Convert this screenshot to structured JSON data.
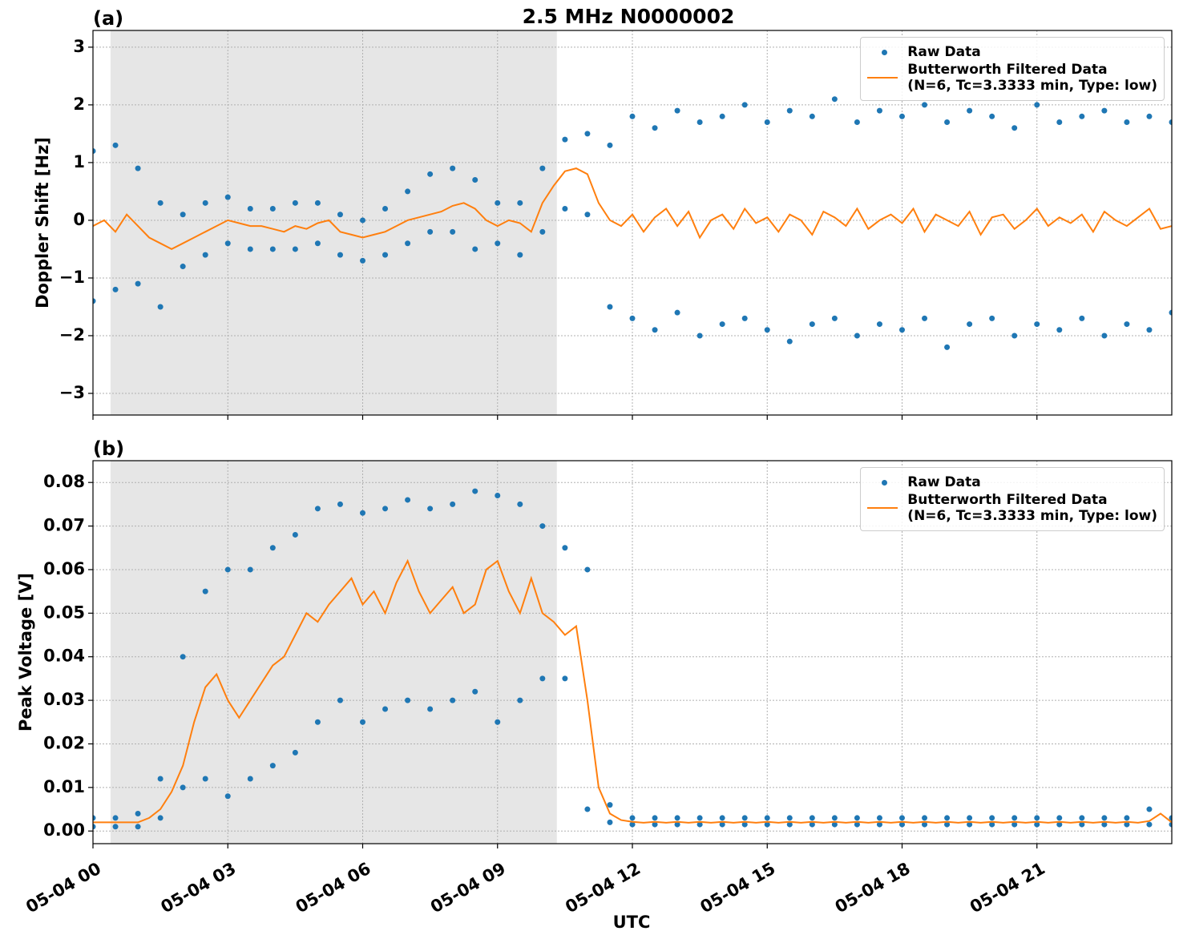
{
  "title": "2.5 MHz N0000002",
  "x_label": "UTC",
  "chart_data": [
    {
      "type": "scatter-line",
      "panel_label": "(a)",
      "y_label": "Doppler Shift [Hz]",
      "xlim": [
        0,
        24
      ],
      "xticks": [
        0,
        3,
        6,
        9,
        12,
        15,
        18,
        21
      ],
      "ylim": [
        -3.375,
        3.29
      ],
      "yticks": [
        {
          "value": -3,
          "label": "−3"
        },
        {
          "value": -2,
          "label": "−2"
        },
        {
          "value": -1,
          "label": "−1"
        },
        0,
        1,
        2,
        3
      ],
      "grid": true,
      "shaded_span": [
        0.39,
        10.32
      ],
      "legend": "upper right",
      "series": [
        {
          "name": "Raw Data",
          "color": "#1f77b4",
          "kind": "scatter",
          "x": [
            0,
            0,
            0.5,
            0.5,
            1,
            1,
            1.5,
            1.5,
            2,
            2,
            2.5,
            2.5,
            3,
            3,
            3.5,
            3.5,
            4,
            4,
            4.5,
            4.5,
            5,
            5,
            5.5,
            5.5,
            6,
            6,
            6.5,
            6.5,
            7,
            7,
            7.5,
            7.5,
            8,
            8,
            8.5,
            8.5,
            9,
            9,
            9.5,
            9.5,
            10,
            10,
            10.5,
            10.5,
            11,
            11,
            11.5,
            11.5,
            12,
            12,
            12.5,
            12.5,
            13,
            13,
            13.5,
            13.5,
            14,
            14,
            14.5,
            14.5,
            15,
            15,
            15.5,
            15.5,
            16,
            16,
            16.5,
            16.5,
            17,
            17,
            17.5,
            17.5,
            18,
            18,
            18.5,
            18.5,
            19,
            19,
            19.5,
            19.5,
            20,
            20,
            20.5,
            20.5,
            21,
            21,
            21.5,
            21.5,
            22,
            22,
            22.5,
            22.5,
            23,
            23,
            23.5,
            23.5,
            24,
            24
          ],
          "values": [
            1.2,
            -1.4,
            1.3,
            -1.2,
            0.9,
            -1.1,
            0.3,
            -1.5,
            0.1,
            -0.8,
            0.3,
            -0.6,
            0.4,
            -0.4,
            0.2,
            -0.5,
            0.2,
            -0.5,
            0.3,
            -0.5,
            0.3,
            -0.4,
            0.1,
            -0.6,
            0.0,
            -0.7,
            0.2,
            -0.6,
            0.5,
            -0.4,
            0.8,
            -0.2,
            0.9,
            -0.2,
            0.7,
            -0.5,
            0.3,
            -0.4,
            0.3,
            -0.6,
            0.9,
            -0.2,
            1.4,
            0.2,
            1.5,
            0.1,
            1.3,
            -1.5,
            1.8,
            -1.7,
            1.6,
            -1.9,
            1.9,
            -1.6,
            1.7,
            -2.0,
            1.8,
            -1.8,
            2.0,
            -1.7,
            1.7,
            -1.9,
            1.9,
            -2.1,
            1.8,
            -1.8,
            2.1,
            -1.7,
            1.7,
            -2.0,
            1.9,
            -1.8,
            1.8,
            -1.9,
            2.0,
            -1.7,
            1.7,
            -2.2,
            1.9,
            -1.8,
            1.8,
            -1.7,
            1.6,
            -2.0,
            2.0,
            -1.8,
            1.7,
            -1.9,
            1.8,
            -1.7,
            1.9,
            -2.0,
            1.7,
            -1.8,
            1.8,
            -1.9,
            1.7,
            -1.6
          ]
        },
        {
          "name": "Butterworth Filtered Data\n(N=6, Tc=3.3333 min, Type: low)",
          "color": "#ff7f0e",
          "kind": "line",
          "x": [
            0,
            0.25,
            0.5,
            0.75,
            1,
            1.25,
            1.5,
            1.75,
            2,
            2.25,
            2.5,
            2.75,
            3,
            3.25,
            3.5,
            3.75,
            4,
            4.25,
            4.5,
            4.75,
            5,
            5.25,
            5.5,
            5.75,
            6,
            6.25,
            6.5,
            6.75,
            7,
            7.25,
            7.5,
            7.75,
            8,
            8.25,
            8.5,
            8.75,
            9,
            9.25,
            9.5,
            9.75,
            10,
            10.25,
            10.5,
            10.75,
            11,
            11.25,
            11.5,
            11.75,
            12,
            12.25,
            12.5,
            12.75,
            13,
            13.25,
            13.5,
            13.75,
            14,
            14.25,
            14.5,
            14.75,
            15,
            15.25,
            15.5,
            15.75,
            16,
            16.25,
            16.5,
            16.75,
            17,
            17.25,
            17.5,
            17.75,
            18,
            18.25,
            18.5,
            18.75,
            19,
            19.25,
            19.5,
            19.75,
            20,
            20.25,
            20.5,
            20.75,
            21,
            21.25,
            21.5,
            21.75,
            22,
            22.25,
            22.5,
            22.75,
            23,
            23.25,
            23.5,
            23.75,
            24
          ],
          "values": [
            -0.1,
            0.0,
            -0.2,
            0.1,
            -0.1,
            -0.3,
            -0.4,
            -0.5,
            -0.4,
            -0.3,
            -0.2,
            -0.1,
            0.0,
            -0.05,
            -0.1,
            -0.1,
            -0.15,
            -0.2,
            -0.1,
            -0.15,
            -0.05,
            0.0,
            -0.2,
            -0.25,
            -0.3,
            -0.25,
            -0.2,
            -0.1,
            0.0,
            0.05,
            0.1,
            0.15,
            0.25,
            0.3,
            0.2,
            0.0,
            -0.1,
            0.0,
            -0.05,
            -0.2,
            0.3,
            0.6,
            0.85,
            0.9,
            0.8,
            0.3,
            0.0,
            -0.1,
            0.1,
            -0.2,
            0.05,
            0.2,
            -0.1,
            0.15,
            -0.3,
            0.0,
            0.1,
            -0.15,
            0.2,
            -0.05,
            0.05,
            -0.2,
            0.1,
            0.0,
            -0.25,
            0.15,
            0.05,
            -0.1,
            0.2,
            -0.15,
            0.0,
            0.1,
            -0.05,
            0.2,
            -0.2,
            0.1,
            0.0,
            -0.1,
            0.15,
            -0.25,
            0.05,
            0.1,
            -0.15,
            0.0,
            0.2,
            -0.1,
            0.05,
            -0.05,
            0.1,
            -0.2,
            0.15,
            0.0,
            -0.1,
            0.05,
            0.2,
            -0.15,
            -0.1
          ]
        }
      ]
    },
    {
      "type": "scatter-line",
      "panel_label": "(b)",
      "y_label": "Peak Voltage [V]",
      "xlim": [
        0,
        24
      ],
      "xticks": [
        {
          "value": 0,
          "label": "05-04 00"
        },
        {
          "value": 3,
          "label": "05-04 03"
        },
        {
          "value": 6,
          "label": "05-04 06"
        },
        {
          "value": 9,
          "label": "05-04 09"
        },
        {
          "value": 12,
          "label": "05-04 12"
        },
        {
          "value": 15,
          "label": "05-04 15"
        },
        {
          "value": 18,
          "label": "05-04 18"
        },
        {
          "value": 21,
          "label": "05-04 21"
        }
      ],
      "ylim": [
        -0.0029,
        0.085
      ],
      "yticks": [
        {
          "value": 0,
          "label": "0.00"
        },
        {
          "value": 0.01,
          "label": "0.01"
        },
        {
          "value": 0.02,
          "label": "0.02"
        },
        {
          "value": 0.03,
          "label": "0.03"
        },
        {
          "value": 0.04,
          "label": "0.04"
        },
        {
          "value": 0.05,
          "label": "0.05"
        },
        {
          "value": 0.06,
          "label": "0.06"
        },
        {
          "value": 0.07,
          "label": "0.07"
        },
        {
          "value": 0.08,
          "label": "0.08"
        }
      ],
      "grid": true,
      "shaded_span": [
        0.39,
        10.32
      ],
      "legend": "upper right",
      "series": [
        {
          "name": "Raw Data",
          "color": "#1f77b4",
          "kind": "scatter",
          "x": [
            0,
            0,
            0.5,
            0.5,
            1,
            1,
            1.5,
            1.5,
            2,
            2,
            2.5,
            2.5,
            3,
            3,
            3.5,
            3.5,
            4,
            4,
            4.5,
            4.5,
            5,
            5,
            5.5,
            5.5,
            6,
            6,
            6.5,
            6.5,
            7,
            7,
            7.5,
            7.5,
            8,
            8,
            8.5,
            8.5,
            9,
            9,
            9.5,
            9.5,
            10,
            10,
            10.5,
            10.5,
            11,
            11,
            11.5,
            11.5,
            12,
            12,
            12.5,
            12.5,
            13,
            13,
            13.5,
            13.5,
            14,
            14,
            14.5,
            14.5,
            15,
            15,
            15.5,
            15.5,
            16,
            16,
            16.5,
            16.5,
            17,
            17,
            17.5,
            17.5,
            18,
            18,
            18.5,
            18.5,
            19,
            19,
            19.5,
            19.5,
            20,
            20,
            20.5,
            20.5,
            21,
            21,
            21.5,
            21.5,
            22,
            22,
            22.5,
            22.5,
            23,
            23,
            23.5,
            23.5,
            24,
            24
          ],
          "values": [
            0.003,
            0.001,
            0.003,
            0.001,
            0.004,
            0.001,
            0.012,
            0.003,
            0.04,
            0.01,
            0.055,
            0.012,
            0.06,
            0.008,
            0.06,
            0.012,
            0.065,
            0.015,
            0.068,
            0.018,
            0.074,
            0.025,
            0.075,
            0.03,
            0.073,
            0.025,
            0.074,
            0.028,
            0.076,
            0.03,
            0.074,
            0.028,
            0.075,
            0.03,
            0.078,
            0.032,
            0.077,
            0.025,
            0.075,
            0.03,
            0.07,
            0.035,
            0.065,
            0.035,
            0.06,
            0.005,
            0.006,
            0.002,
            0.003,
            0.0015,
            0.003,
            0.0015,
            0.003,
            0.0015,
            0.003,
            0.0015,
            0.003,
            0.0015,
            0.003,
            0.0015,
            0.003,
            0.0015,
            0.003,
            0.0015,
            0.003,
            0.0015,
            0.003,
            0.0015,
            0.003,
            0.0015,
            0.003,
            0.0015,
            0.003,
            0.0015,
            0.003,
            0.0015,
            0.003,
            0.0015,
            0.003,
            0.0015,
            0.003,
            0.0015,
            0.003,
            0.0015,
            0.003,
            0.0015,
            0.003,
            0.0015,
            0.003,
            0.0015,
            0.003,
            0.0015,
            0.003,
            0.0015,
            0.005,
            0.0015,
            0.003,
            0.0015
          ]
        },
        {
          "name": "Butterworth Filtered Data\n(N=6, Tc=3.3333 min, Type: low)",
          "color": "#ff7f0e",
          "kind": "line",
          "x": [
            0,
            0.25,
            0.5,
            0.75,
            1,
            1.25,
            1.5,
            1.75,
            2,
            2.25,
            2.5,
            2.75,
            3,
            3.25,
            3.5,
            3.75,
            4,
            4.25,
            4.5,
            4.75,
            5,
            5.25,
            5.5,
            5.75,
            6,
            6.25,
            6.5,
            6.75,
            7,
            7.25,
            7.5,
            7.75,
            8,
            8.25,
            8.5,
            8.75,
            9,
            9.25,
            9.5,
            9.75,
            10,
            10.25,
            10.5,
            10.75,
            11,
            11.25,
            11.5,
            11.75,
            12,
            12.25,
            12.5,
            12.75,
            13,
            13.25,
            13.5,
            13.75,
            14,
            14.25,
            14.5,
            14.75,
            15,
            15.25,
            15.5,
            15.75,
            16,
            16.25,
            16.5,
            16.75,
            17,
            17.25,
            17.5,
            17.75,
            18,
            18.25,
            18.5,
            18.75,
            19,
            19.25,
            19.5,
            19.75,
            20,
            20.25,
            20.5,
            20.75,
            21,
            21.25,
            21.5,
            21.75,
            22,
            22.25,
            22.5,
            22.75,
            23,
            23.25,
            23.5,
            23.75,
            24
          ],
          "values": [
            0.002,
            0.002,
            0.002,
            0.002,
            0.002,
            0.003,
            0.005,
            0.009,
            0.015,
            0.025,
            0.033,
            0.036,
            0.03,
            0.026,
            0.03,
            0.034,
            0.038,
            0.04,
            0.045,
            0.05,
            0.048,
            0.052,
            0.055,
            0.058,
            0.052,
            0.055,
            0.05,
            0.057,
            0.062,
            0.055,
            0.05,
            0.053,
            0.056,
            0.05,
            0.052,
            0.06,
            0.062,
            0.055,
            0.05,
            0.058,
            0.05,
            0.048,
            0.045,
            0.047,
            0.03,
            0.01,
            0.004,
            0.0025,
            0.0021,
            0.0019,
            0.0021,
            0.0019,
            0.0021,
            0.0019,
            0.0021,
            0.0019,
            0.0021,
            0.0019,
            0.0021,
            0.0019,
            0.0021,
            0.0019,
            0.0021,
            0.0019,
            0.0021,
            0.0019,
            0.0021,
            0.0019,
            0.0021,
            0.0019,
            0.0021,
            0.0019,
            0.0021,
            0.0019,
            0.0021,
            0.0019,
            0.0021,
            0.0019,
            0.0021,
            0.0019,
            0.0021,
            0.0019,
            0.0021,
            0.0019,
            0.0021,
            0.0019,
            0.0021,
            0.0019,
            0.0021,
            0.0019,
            0.0021,
            0.0019,
            0.0021,
            0.0019,
            0.0023,
            0.004,
            0.002
          ]
        }
      ]
    }
  ]
}
